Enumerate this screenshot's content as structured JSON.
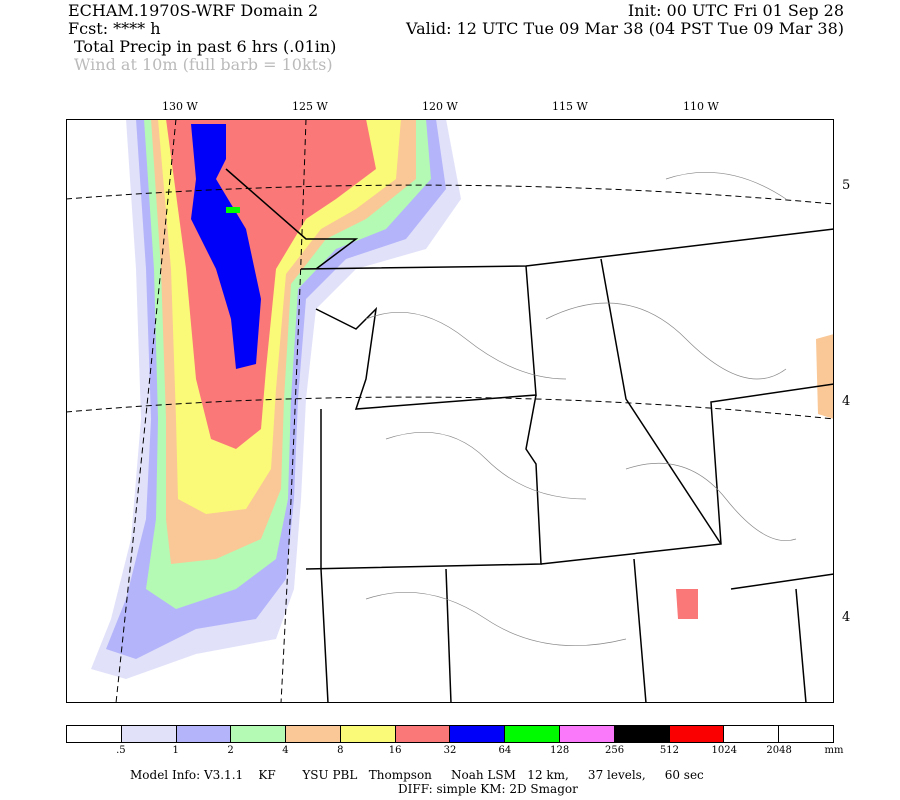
{
  "header": {
    "title": "ECHAM.1970S-WRF Domain 2",
    "init": "Init: 00 UTC Fri 01 Sep 28",
    "fcst": "Fcst: **** h",
    "valid": "Valid: 12 UTC Tue 09 Mar 38 (04 PST Tue 09 Mar 38)",
    "field1": "Total Precip in past 6 hrs (.01in)",
    "field2": "Wind at 10m (full barb = 10kts)"
  },
  "map": {
    "lon_labels": [
      "130 W",
      "125 W",
      "120 W",
      "115 W",
      "110 W"
    ],
    "lat_labels": [
      "5",
      "4",
      "4"
    ]
  },
  "colorbar": {
    "colors": [
      "#ffffff",
      "#e1e1fa",
      "#b4b4fa",
      "#b4fab4",
      "#fac896",
      "#fafa78",
      "#fa7878",
      "#0000fa",
      "#00fa00",
      "#fa78fa",
      "#000000",
      "#fa0000",
      "#ffffff",
      "#ffffff"
    ],
    "labels": [
      ".5",
      "1",
      "2",
      "4",
      "8",
      "16",
      "32",
      "64",
      "128",
      "256",
      "512",
      "1024",
      "2048"
    ],
    "unit": "mm"
  },
  "footer": {
    "line1": "Model Info: V3.1.1    KF       YSU PBL   Thompson     Noah LSM   12 km,     37 levels,     60 sec",
    "line2": "DIFF: simple KM: 2D Smagor"
  }
}
